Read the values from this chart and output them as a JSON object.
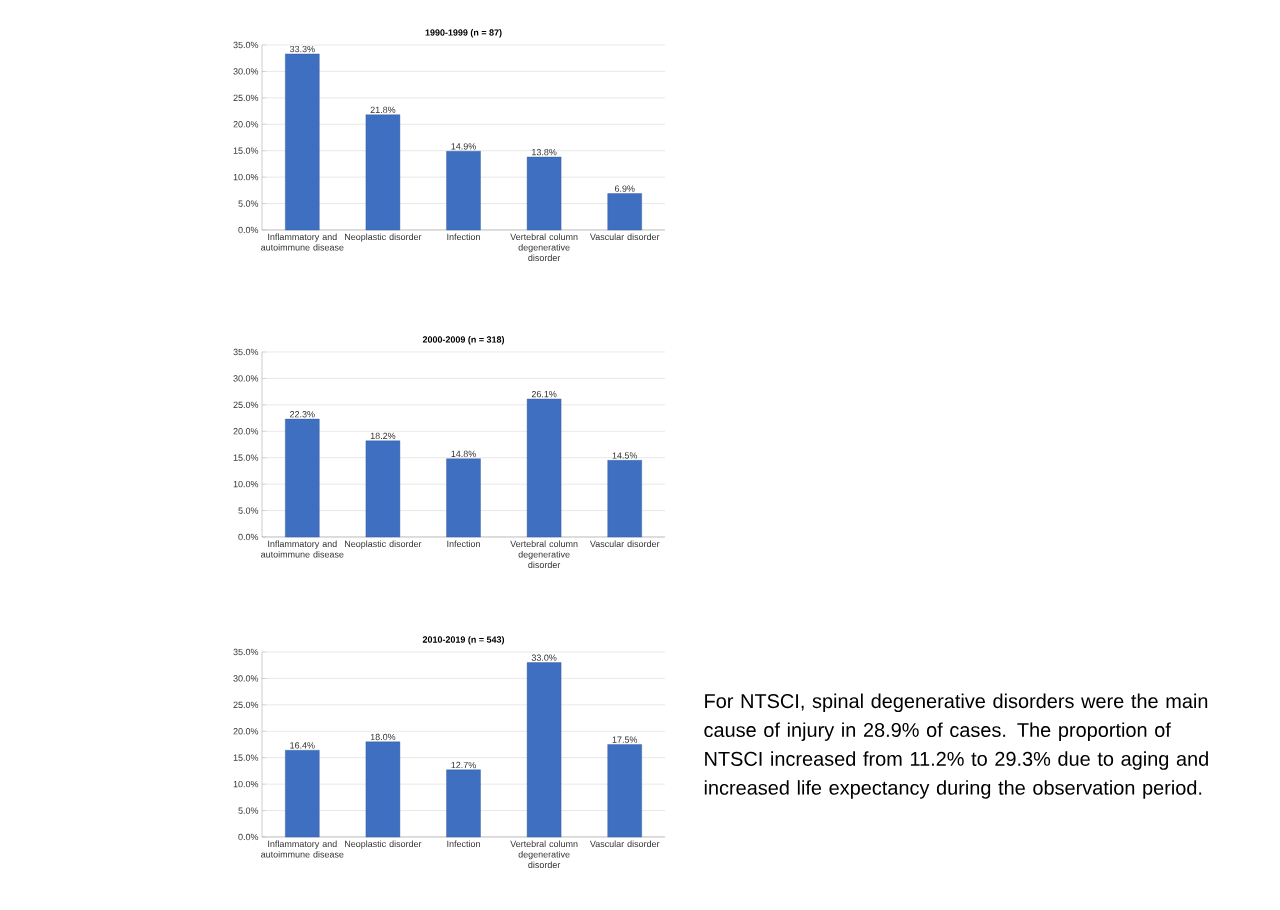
{
  "chart_data": [
    {
      "type": "bar",
      "title": "1990-1999 (n = 87)",
      "categories": [
        "Inflammatory and autoimmune disease",
        "Neoplastic disorder",
        "Infection",
        "Vertebral column degenerative disorder",
        "Vascular disorder"
      ],
      "values": [
        33.3,
        21.8,
        14.9,
        13.8,
        6.9
      ],
      "value_labels": [
        "33.3%",
        "21.8%",
        "14.9%",
        "13.8%",
        "6.9%"
      ],
      "color": "#3f6fc0",
      "ylim": [
        0,
        35
      ],
      "yticks": [
        {
          "value": 0,
          "label": "0.0%"
        },
        {
          "value": 5,
          "label": "5.0%"
        },
        {
          "value": 10,
          "label": "10.0%"
        },
        {
          "value": 15,
          "label": "15.0%"
        },
        {
          "value": 20,
          "label": "20.0%"
        },
        {
          "value": 25,
          "label": "25.0%"
        },
        {
          "value": 30,
          "label": "30.0%"
        },
        {
          "value": 35,
          "label": "35.0%"
        }
      ],
      "grid": "y"
    },
    {
      "type": "bar",
      "title": "2000-2009 (n = 318)",
      "categories": [
        "Inflammatory and autoimmune disease",
        "Neoplastic disorder",
        "Infection",
        "Vertebral column degenerative disorder",
        "Vascular disorder"
      ],
      "values": [
        22.3,
        18.2,
        14.8,
        26.1,
        14.5
      ],
      "value_labels": [
        "22.3%",
        "18.2%",
        "14.8%",
        "26.1%",
        "14.5%"
      ],
      "color": "#3f6fc0",
      "ylim": [
        0,
        35
      ],
      "yticks": [
        {
          "value": 0,
          "label": "0.0%"
        },
        {
          "value": 5,
          "label": "5.0%"
        },
        {
          "value": 10,
          "label": "10.0%"
        },
        {
          "value": 15,
          "label": "15.0%"
        },
        {
          "value": 20,
          "label": "20.0%"
        },
        {
          "value": 25,
          "label": "25.0%"
        },
        {
          "value": 30,
          "label": "30.0%"
        },
        {
          "value": 35,
          "label": "35.0%"
        }
      ],
      "grid": "y"
    },
    {
      "type": "bar",
      "title": "2010-2019 (n = 543)",
      "categories": [
        "Inflammatory and autoimmune disease",
        "Neoplastic disorder",
        "Infection",
        "Vertebral column degenerative disorder",
        "Vascular disorder"
      ],
      "values": [
        16.4,
        18.0,
        12.7,
        33.0,
        17.5
      ],
      "value_labels": [
        "16.4%",
        "18.0%",
        "12.7%",
        "33.0%",
        "17.5%"
      ],
      "color": "#3f6fc0",
      "ylim": [
        0,
        35
      ],
      "yticks": [
        {
          "value": 0,
          "label": "0.0%"
        },
        {
          "value": 5,
          "label": "5.0%"
        },
        {
          "value": 10,
          "label": "10.0%"
        },
        {
          "value": 15,
          "label": "15.0%"
        },
        {
          "value": 20,
          "label": "20.0%"
        },
        {
          "value": 25,
          "label": "25.0%"
        },
        {
          "value": 30,
          "label": "30.0%"
        },
        {
          "value": 35,
          "label": "35.0%"
        }
      ],
      "grid": "y"
    },
    {
      "type": "other",
      "annotations": [
        "For NTSCI, spinal degenerative disorders were the main cause of injury in 28.9% of cases. The proportion of NTSCI increased from 11.2% to 29.3% due to aging and increased life expectancy during the observation period."
      ]
    }
  ]
}
